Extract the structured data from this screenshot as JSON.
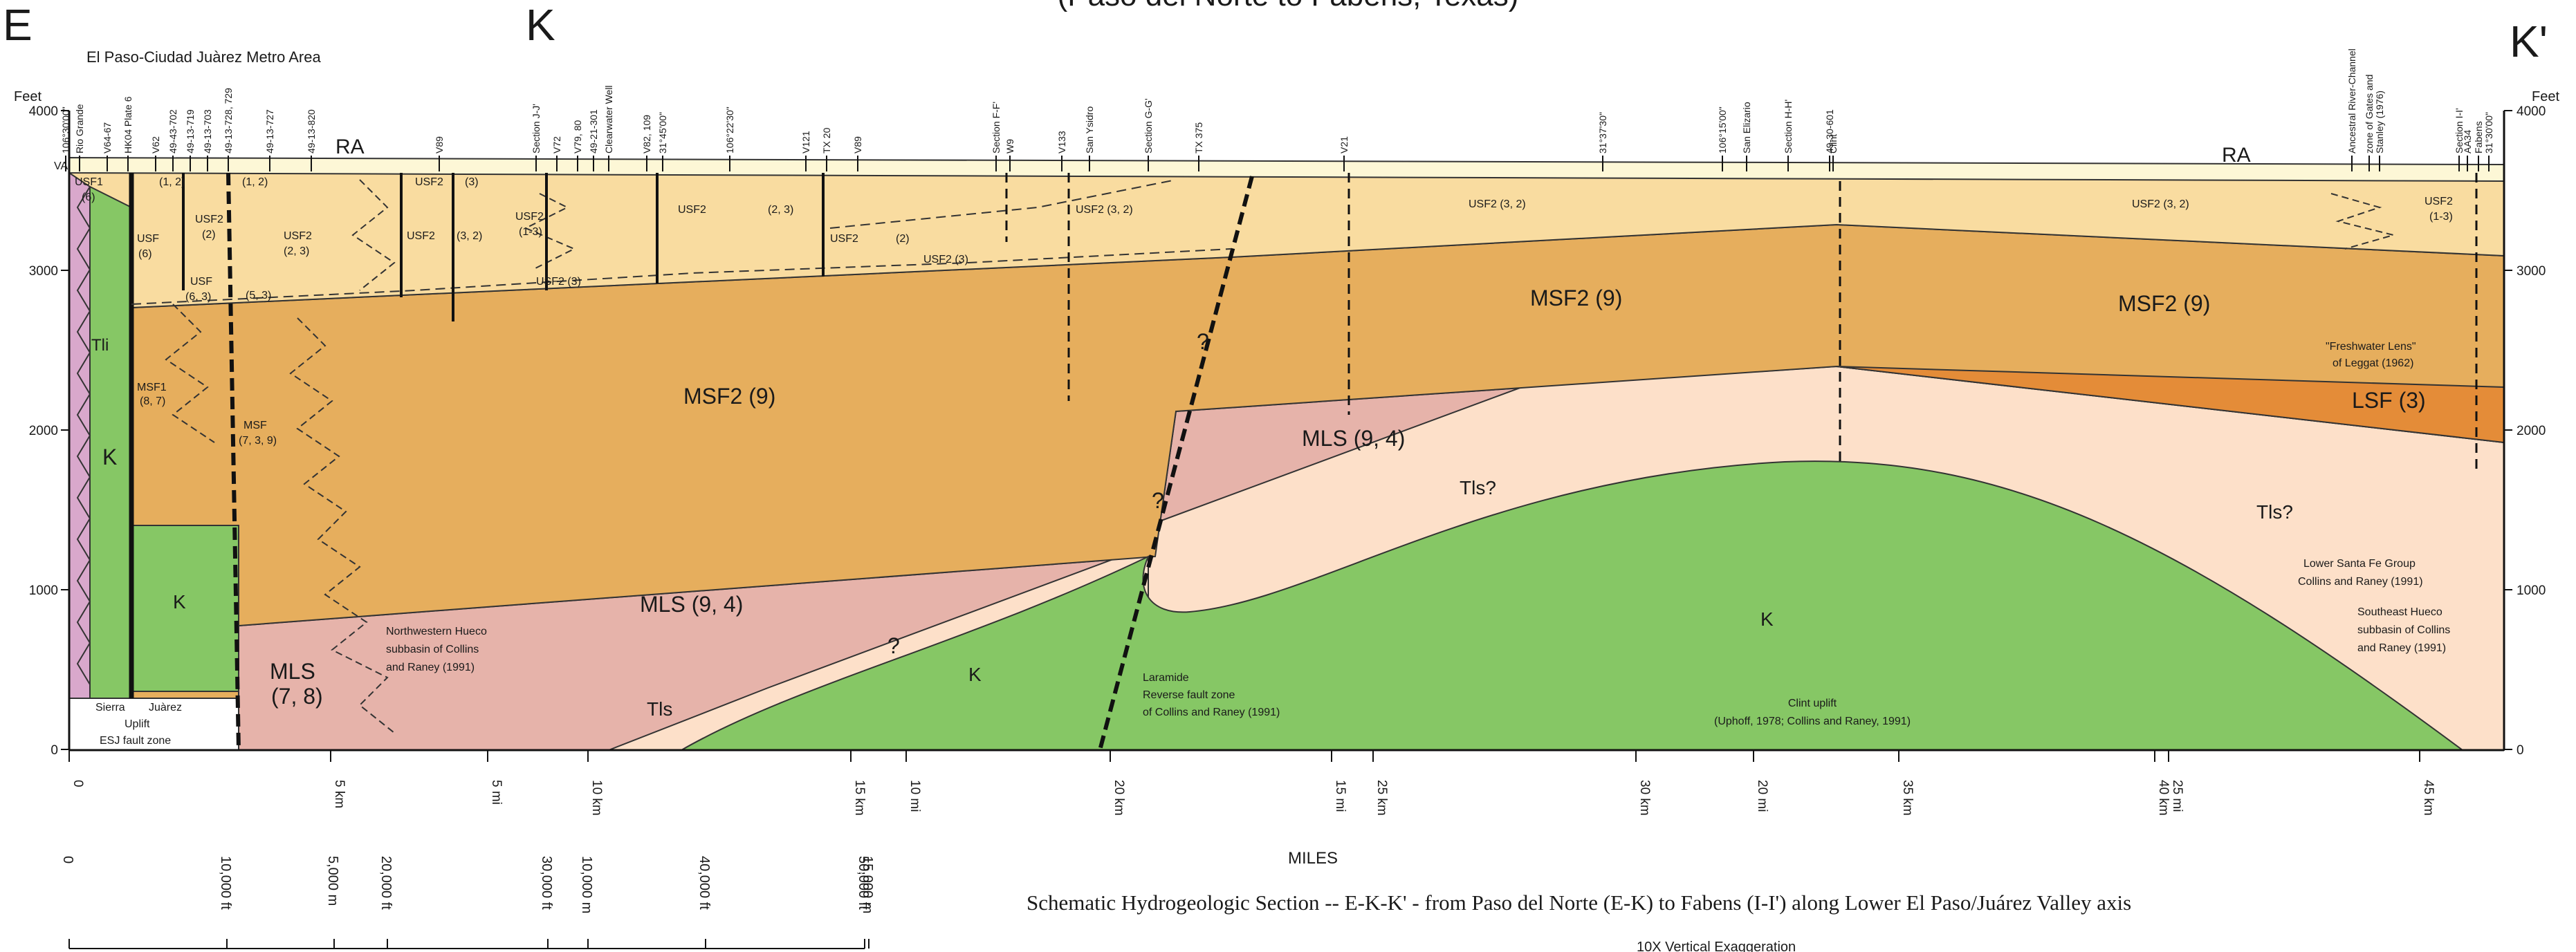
{
  "top_title_fragment": "(Paso del Norte to Fabens, Texas)",
  "section_letters": {
    "e": "E",
    "k": "K",
    "k_prime": "K'"
  },
  "area_title": "El Paso-Ciudad Juàrez Metro Area",
  "axis": {
    "feet": "Feet",
    "ticks": [
      "4000",
      "3000",
      "2000",
      "1000",
      "0"
    ]
  },
  "well_labels": [
    "106°30'00\"",
    "Rio Grande",
    "V64-67",
    "HK04 Plate 6",
    "V62",
    "49-43-702",
    "49-13-719",
    "49-13-703",
    "49-13-728, 729",
    "49-13-727",
    "49-13-820",
    "V89",
    "Section J-J'",
    "V72",
    "V79, 80",
    "49-21-301",
    "Clearwater Well",
    "V82, 109",
    "31°45'00\"",
    "106°22'30\"",
    "V121",
    "TX 20",
    "V89",
    "Section F-F'",
    "W9",
    "V133",
    "San Ysidro",
    "Section G-G'",
    "TX 375",
    "V21",
    "31°37'30\"",
    "106°15'00\"",
    "San Elizario",
    "Section H-H'",
    "49-30-601",
    "Clint",
    "Ancestral River-Channel",
    "zone of Gates and",
    "Stanley (1976)",
    "AA34",
    "Fabens",
    "Section I-I'",
    "31°30'00\""
  ],
  "unit_labels": {
    "va": "VA",
    "usf1": "USF1",
    "usf1_n": "(6)",
    "usf": "USF",
    "usf_6": "(6)",
    "usf_12": "(1, 2)",
    "usf2": "USF2",
    "usf2_2": "(2)",
    "usf2_12": "(1, 2)",
    "usf2_23": "(2, 3)",
    "usf_53": "(5, 3)",
    "usf_63": "(6, 3)",
    "usf2_3": "(3)",
    "usf2_32": "(3, 2)",
    "usf2_13": "(1-3)",
    "usf2_3b": "USF2 (3)",
    "usf2_23b": "(2, 3)",
    "usf2_2b": "(2)",
    "usf2_3c": "USF2 (3)",
    "usf2_32b": "USF2 (3, 2)",
    "usf2_32c": "USF2 (3, 2)",
    "usf2_32d": "USF2 (3, 2)",
    "usf2_13b": "(1-3)",
    "ra": "RA",
    "ra2": "RA",
    "tli": "Tli",
    "k1": "K",
    "k2": "K",
    "k3": "K",
    "k4": "K",
    "msf1": "MSF1",
    "msf1_n": "(8, 7)",
    "msf": "MSF",
    "msf_n": "(7, 3, 9)",
    "msf2_a": "MSF2 (9)",
    "msf2_b": "MSF2 (9)",
    "msf2_c": "MSF2 (9)",
    "mls_a": "MLS (9, 4)",
    "mls_b": "MLS (9, 4)",
    "mls_c": "MLS",
    "mls_c_n": "(7, 8)",
    "tls1": "Tls?",
    "tls2": "Tls?",
    "tls3": "Tls",
    "lsf": "LSF (3)",
    "q": "?"
  },
  "annotations": {
    "nw_hueco": [
      "Northwestern Hueco",
      "subbasin of Collins",
      "and Raney (1991)"
    ],
    "laramide": [
      "Laramide",
      "Reverse fault zone",
      "of Collins and Raney (1991)"
    ],
    "clint": [
      "Clint uplift",
      "(Uphoff, 1978; Collins and Raney, 1991)"
    ],
    "fresh": [
      "\"Freshwater Lens\"",
      "of Leggat (1962)"
    ],
    "lower_sf": [
      "Lower Santa Fe Group",
      "Collins and Raney (1991)"
    ],
    "se_hueco": [
      "Southeast Hueco",
      "subbasin of Collins",
      "and Raney (1991)"
    ],
    "sierra": [
      "Sierra",
      "Juàrez",
      "Uplift",
      "ESJ fault zone"
    ]
  },
  "distance_ticks": [
    "0",
    "5 km",
    "5 mi",
    "10 km",
    "15 km",
    "10 mi",
    "20 km",
    "15 mi",
    "25 km",
    "30 km",
    "20 mi",
    "35 km",
    "40 km",
    "25 mi",
    "45 km"
  ],
  "miles_label": "MILES",
  "scale_ticks": [
    "0",
    "10,000 ft",
    "5,000 m",
    "20,000 ft",
    "30,000 ft",
    "10,000 m",
    "40,000 ft",
    "50,000 ft",
    "15,000 m"
  ],
  "caption": "Schematic Hydrogeologic Section -- E-K-K' - from Paso del Norte (E-K) to Fabens (I-I') along Lower El Paso/Juárez Valley axis",
  "vertical_exaggeration": "10X Vertical Exaggeration",
  "colors": {
    "usf": "#f9dca0",
    "msf": "#e6ae5d",
    "mls": "#e6b3aa",
    "tls": "#fde0c9",
    "k": "#86c765",
    "tli": "#d9a8cc",
    "lsf": "#e48c38",
    "ra": "#fdf7d6"
  }
}
